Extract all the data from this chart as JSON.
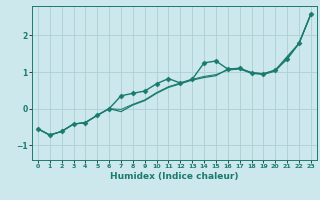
{
  "xlabel": "Humidex (Indice chaleur)",
  "background_color": "#cce8ec",
  "grid_color": "#aacfd4",
  "line_color": "#1a7a6e",
  "xlim": [
    -0.5,
    23.5
  ],
  "ylim": [
    -1.4,
    2.8
  ],
  "x_ticks": [
    0,
    1,
    2,
    3,
    4,
    5,
    6,
    7,
    8,
    9,
    10,
    11,
    12,
    13,
    14,
    15,
    16,
    17,
    18,
    19,
    20,
    21,
    22,
    23
  ],
  "y_ticks": [
    -1,
    0,
    1,
    2
  ],
  "series": [
    {
      "x": [
        0,
        1,
        2,
        3,
        4,
        5,
        6,
        7,
        8,
        9,
        10,
        11,
        12,
        13,
        14,
        15,
        16,
        17,
        18,
        19,
        20,
        21,
        22,
        23
      ],
      "y": [
        -0.55,
        -0.72,
        -0.62,
        -0.42,
        -0.38,
        -0.18,
        0.0,
        0.35,
        0.42,
        0.48,
        0.68,
        0.82,
        0.7,
        0.8,
        1.25,
        1.3,
        1.08,
        1.1,
        0.98,
        0.95,
        1.05,
        1.35,
        1.78,
        2.58
      ],
      "marker": "D",
      "markersize": 2.5,
      "linewidth": 1.0
    },
    {
      "x": [
        0,
        1,
        2,
        3,
        4,
        5,
        6,
        7,
        8,
        9,
        10,
        11,
        12,
        13,
        14,
        15,
        16,
        17,
        18,
        19,
        20,
        21,
        22,
        23
      ],
      "y": [
        -0.55,
        -0.72,
        -0.62,
        -0.42,
        -0.38,
        -0.18,
        0.0,
        -0.08,
        0.1,
        0.22,
        0.42,
        0.58,
        0.68,
        0.78,
        0.85,
        0.9,
        1.08,
        1.1,
        0.98,
        0.95,
        1.05,
        1.42,
        1.78,
        2.58
      ],
      "marker": null,
      "linewidth": 0.9
    },
    {
      "x": [
        0,
        1,
        2,
        3,
        4,
        5,
        6,
        7,
        8,
        9,
        10,
        11,
        12,
        13,
        14,
        15,
        16,
        17,
        18,
        19,
        20,
        21,
        22,
        23
      ],
      "y": [
        -0.55,
        -0.72,
        -0.62,
        -0.42,
        -0.38,
        -0.18,
        0.0,
        -0.02,
        0.12,
        0.24,
        0.44,
        0.6,
        0.7,
        0.8,
        0.88,
        0.93,
        1.05,
        1.08,
        0.96,
        0.93,
        1.02,
        1.38,
        1.78,
        2.58
      ],
      "marker": null,
      "linewidth": 0.7
    }
  ]
}
